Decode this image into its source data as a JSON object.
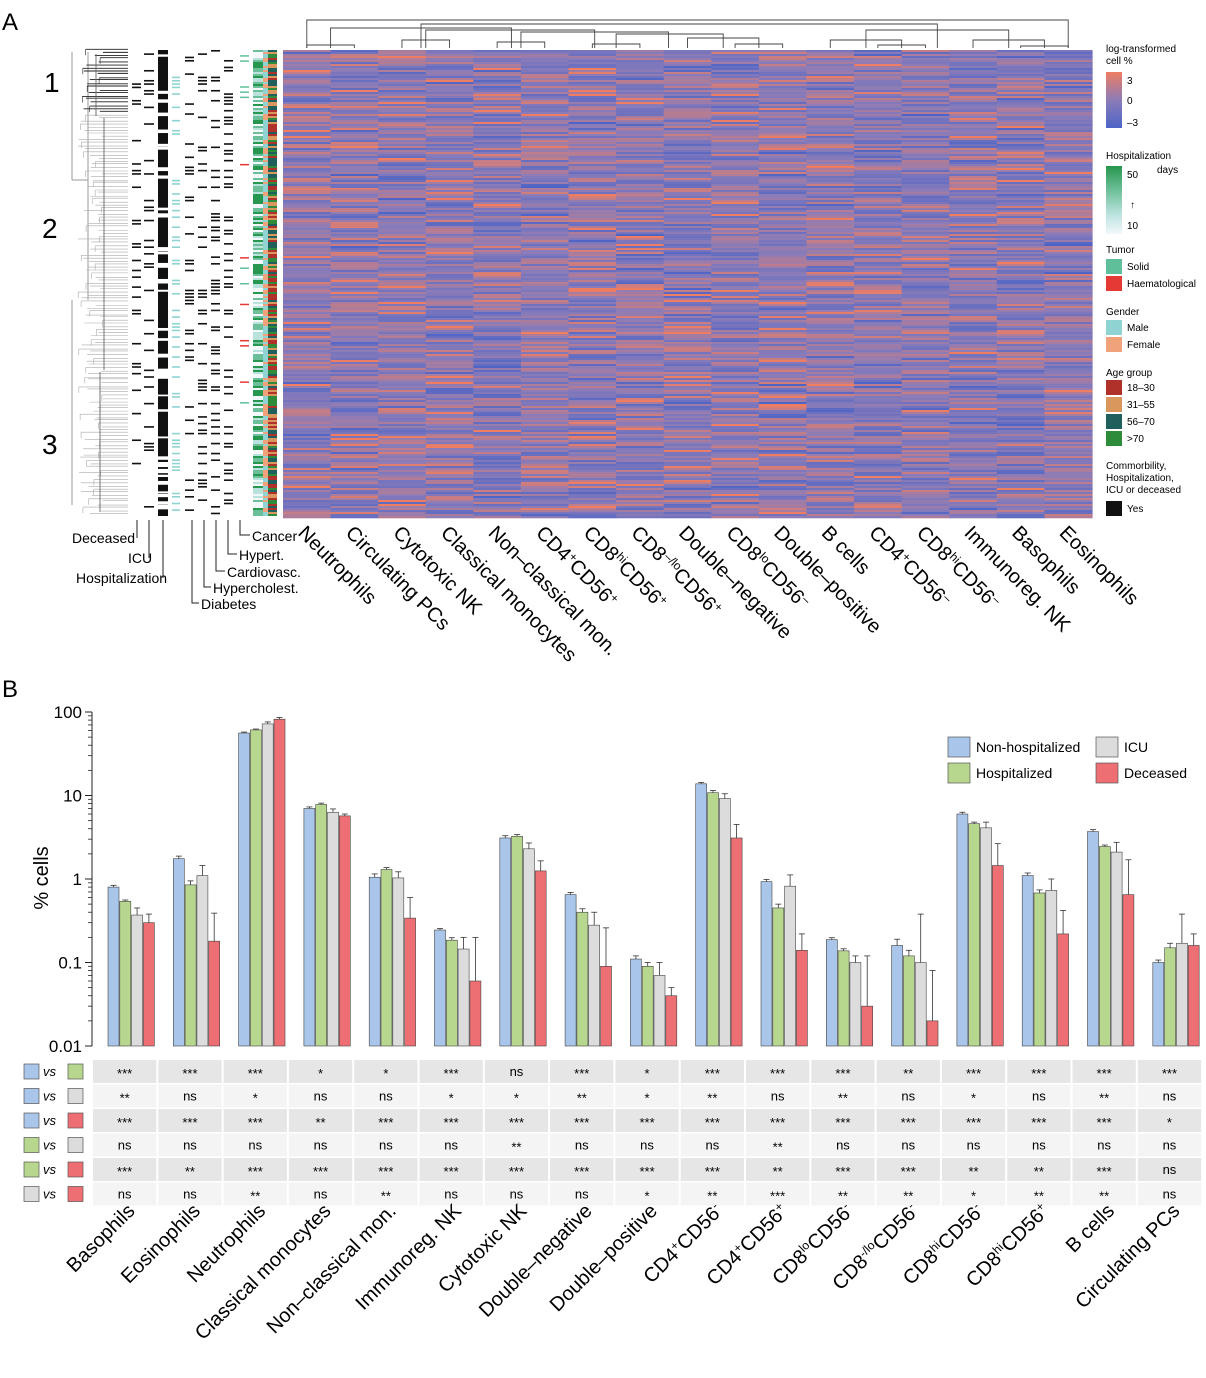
{
  "panel_a": {
    "panel_label": "A",
    "cluster_labels": [
      "1",
      "2",
      "3"
    ],
    "annotation_labels": [
      "Deceased",
      "ICU",
      "Hospitalization",
      "Diabetes",
      "Hyperchol­est.",
      "Cardiovasc.",
      "Hypert.",
      "Cancer"
    ],
    "column_labels": [
      {
        "parts": [
          [
            "Neutrophils",
            ""
          ]
        ]
      },
      {
        "parts": [
          [
            "Circulating PCs",
            ""
          ]
        ]
      },
      {
        "parts": [
          [
            "Cytotoxic NK",
            ""
          ]
        ]
      },
      {
        "parts": [
          [
            "Classical monocytes",
            ""
          ]
        ]
      },
      {
        "parts": [
          [
            "Non–classical mon.",
            ""
          ]
        ]
      },
      {
        "parts": [
          [
            "CD4",
            ""
          ],
          [
            "+",
            "sup"
          ],
          [
            "CD56",
            ""
          ],
          [
            "+",
            "sup"
          ]
        ]
      },
      {
        "parts": [
          [
            "CD8",
            ""
          ],
          [
            "hi",
            "sup"
          ],
          [
            "CD56",
            ""
          ],
          [
            "+",
            "sup"
          ]
        ]
      },
      {
        "parts": [
          [
            "CD8",
            ""
          ],
          [
            "–/lo",
            "sup"
          ],
          [
            "CD56",
            ""
          ],
          [
            "+",
            "sup"
          ]
        ]
      },
      {
        "parts": [
          [
            "Double–negative",
            ""
          ]
        ]
      },
      {
        "parts": [
          [
            "CD8",
            ""
          ],
          [
            "lo",
            "sup"
          ],
          [
            "CD56",
            ""
          ],
          [
            "–",
            "sup"
          ]
        ]
      },
      {
        "parts": [
          [
            "Double–positive",
            ""
          ]
        ]
      },
      {
        "parts": [
          [
            "B cells",
            ""
          ]
        ]
      },
      {
        "parts": [
          [
            "CD4",
            ""
          ],
          [
            "+",
            "sup"
          ],
          [
            "CD56",
            ""
          ],
          [
            "–",
            "sup"
          ]
        ]
      },
      {
        "parts": [
          [
            "CD8",
            ""
          ],
          [
            "hi",
            "sup"
          ],
          [
            "CD56",
            ""
          ],
          [
            "–",
            "sup"
          ]
        ]
      },
      {
        "parts": [
          [
            "Immunoreg. NK",
            ""
          ]
        ]
      },
      {
        "parts": [
          [
            "Basophils",
            ""
          ]
        ]
      },
      {
        "parts": [
          [
            "Eosinophils",
            ""
          ]
        ]
      }
    ],
    "legend": {
      "colorbar_title": [
        "log-transformed",
        "cell %"
      ],
      "colorbar_ticks": [
        "3",
        "0",
        "–3"
      ],
      "colorbar_colors": [
        "#ee7d62",
        "#8b7cb8",
        "#4d64c6"
      ],
      "hosp_title": [
        "Hospitalization",
        "days"
      ],
      "hosp_ticks": [
        "50",
        "10"
      ],
      "hosp_colors": [
        "#27964e",
        "#6cbf98",
        "#b9e2dd",
        "#f2f8fb"
      ],
      "tumor_title": "Tumor",
      "tumor_items": [
        {
          "label": "Solid",
          "color": "#5fbf9a"
        },
        {
          "label": "Haematological",
          "color": "#e53935"
        }
      ],
      "gender_title": "Gender",
      "gender_items": [
        {
          "label": "Male",
          "color": "#8fd3d3"
        },
        {
          "label": "Female",
          "color": "#f0a27a"
        }
      ],
      "age_title": "Age group",
      "age_items": [
        {
          "label": "18–30",
          "color": "#b0302a"
        },
        {
          "label": "31–55",
          "color": "#d9975e"
        },
        {
          "label": "56–70",
          "color": "#1f5f5c"
        },
        {
          "label": ">70",
          "color": "#2e8b3a"
        }
      ],
      "binary_title": [
        "Commorbility,",
        "Hospitalization,",
        "ICU or deceased"
      ],
      "binary_items": [
        {
          "label": "Yes",
          "color": "#111111"
        }
      ]
    }
  },
  "chart_data": {
    "type": "bar",
    "panel_label": "B",
    "title": "",
    "xlabel": "",
    "ylabel": "% cells",
    "yscale": "log",
    "ylim": [
      0.01,
      100
    ],
    "yticks": [
      0.01,
      0.1,
      1,
      10,
      100
    ],
    "ytick_labels": [
      "0.01",
      "0.1",
      "1",
      "10",
      "100"
    ],
    "categories": [
      {
        "parts": [
          [
            "Basophils",
            ""
          ]
        ]
      },
      {
        "parts": [
          [
            "Eosinophils",
            ""
          ]
        ]
      },
      {
        "parts": [
          [
            "Neutrophils",
            ""
          ]
        ]
      },
      {
        "parts": [
          [
            "Classical monocytes",
            ""
          ]
        ]
      },
      {
        "parts": [
          [
            "Non–classical mon.",
            ""
          ]
        ]
      },
      {
        "parts": [
          [
            "Immunoreg. NK",
            ""
          ]
        ]
      },
      {
        "parts": [
          [
            "Cytotoxic NK",
            ""
          ]
        ]
      },
      {
        "parts": [
          [
            "Double–negative",
            ""
          ]
        ]
      },
      {
        "parts": [
          [
            "Double–positive",
            ""
          ]
        ]
      },
      {
        "parts": [
          [
            "CD4",
            ""
          ],
          [
            "+",
            "sup"
          ],
          [
            "CD56",
            ""
          ],
          [
            "-",
            "sup"
          ]
        ]
      },
      {
        "parts": [
          [
            "CD4",
            ""
          ],
          [
            "+",
            "sup"
          ],
          [
            "CD56",
            ""
          ],
          [
            "+",
            "sup"
          ]
        ]
      },
      {
        "parts": [
          [
            "CD8",
            ""
          ],
          [
            "lo",
            "sup"
          ],
          [
            "CD56",
            ""
          ],
          [
            "-",
            "sup"
          ]
        ]
      },
      {
        "parts": [
          [
            "CD8",
            ""
          ],
          [
            "-/lo",
            "sup"
          ],
          [
            "CD56",
            ""
          ],
          [
            "-",
            "sup"
          ]
        ]
      },
      {
        "parts": [
          [
            "CD8",
            ""
          ],
          [
            "hi",
            "sup"
          ],
          [
            "CD56",
            ""
          ],
          [
            "-",
            "sup"
          ]
        ]
      },
      {
        "parts": [
          [
            "CD8",
            ""
          ],
          [
            "hi",
            "sup"
          ],
          [
            "CD56",
            ""
          ],
          [
            "+",
            "sup"
          ]
        ]
      },
      {
        "parts": [
          [
            "B cells",
            ""
          ]
        ]
      },
      {
        "parts": [
          [
            "Circulating PCs",
            ""
          ]
        ]
      }
    ],
    "series": [
      {
        "name": "Non-hospitalized",
        "color": "#a9c6ea",
        "values": [
          0.8,
          1.75,
          56,
          7.0,
          1.05,
          0.245,
          3.1,
          0.65,
          0.11,
          13.8,
          0.93,
          0.188,
          0.16,
          6.0,
          1.1,
          3.7,
          0.1
        ],
        "errors": [
          0.84,
          1.88,
          57.5,
          7.3,
          1.15,
          0.255,
          3.3,
          0.69,
          0.12,
          14.3,
          0.99,
          0.198,
          0.19,
          6.3,
          1.18,
          3.9,
          0.107
        ]
      },
      {
        "name": "Hospitalized",
        "color": "#b7d78f",
        "values": [
          0.54,
          0.85,
          61,
          7.8,
          1.3,
          0.185,
          3.25,
          0.4,
          0.09,
          10.8,
          0.45,
          0.138,
          0.12,
          4.6,
          0.68,
          2.45,
          0.15
        ],
        "errors": [
          0.56,
          0.95,
          62.5,
          8.1,
          1.37,
          0.198,
          3.4,
          0.44,
          0.1,
          11.5,
          0.5,
          0.146,
          0.14,
          4.8,
          0.74,
          2.55,
          0.17
        ]
      },
      {
        "name": "ICU",
        "color": "#dcdcdc",
        "values": [
          0.37,
          1.1,
          72,
          6.3,
          1.03,
          0.145,
          2.3,
          0.28,
          0.07,
          9.2,
          0.82,
          0.1,
          0.1,
          4.1,
          0.73,
          2.1,
          0.17
        ],
        "errors": [
          0.45,
          1.45,
          76,
          6.9,
          1.22,
          0.2,
          2.7,
          0.4,
          0.1,
          10.5,
          1.12,
          0.12,
          0.38,
          4.8,
          1.0,
          2.75,
          0.38
        ]
      },
      {
        "name": "Deceased",
        "color": "#ee6f73",
        "values": [
          0.3,
          0.18,
          82,
          5.7,
          0.34,
          0.06,
          1.25,
          0.09,
          0.04,
          3.1,
          0.14,
          0.03,
          0.02,
          1.45,
          0.22,
          0.65,
          0.16
        ],
        "errors": [
          0.38,
          0.39,
          86,
          6.0,
          0.6,
          0.2,
          1.65,
          0.26,
          0.05,
          4.5,
          0.22,
          0.12,
          0.08,
          2.65,
          0.42,
          1.7,
          0.22
        ]
      }
    ],
    "legend_position": "top-right",
    "comparisons": [
      {
        "left_color": "#a9c6ea",
        "vs": "vs",
        "right_color": "#b7d78f",
        "values": [
          "***",
          "***",
          "***",
          "*",
          "*",
          "***",
          "ns",
          "***",
          "*",
          "***",
          "***",
          "***",
          "**",
          "***",
          "***",
          "***",
          "***"
        ]
      },
      {
        "left_color": "#a9c6ea",
        "vs": "vs",
        "right_color": "#dcdcdc",
        "values": [
          "**",
          "ns",
          "*",
          "ns",
          "ns",
          "*",
          "*",
          "**",
          "*",
          "**",
          "ns",
          "**",
          "ns",
          "*",
          "ns",
          "**",
          "ns"
        ]
      },
      {
        "left_color": "#a9c6ea",
        "vs": "vs",
        "right_color": "#ee6f73",
        "values": [
          "***",
          "***",
          "***",
          "**",
          "***",
          "***",
          "***",
          "***",
          "***",
          "***",
          "***",
          "***",
          "***",
          "***",
          "***",
          "***",
          "*"
        ]
      },
      {
        "left_color": "#b7d78f",
        "vs": "vs",
        "right_color": "#dcdcdc",
        "values": [
          "ns",
          "ns",
          "ns",
          "ns",
          "ns",
          "ns",
          "**",
          "ns",
          "ns",
          "ns",
          "**",
          "ns",
          "ns",
          "ns",
          "ns",
          "ns",
          "ns"
        ]
      },
      {
        "left_color": "#b7d78f",
        "vs": "vs",
        "right_color": "#ee6f73",
        "values": [
          "***",
          "**",
          "***",
          "***",
          "***",
          "***",
          "***",
          "***",
          "***",
          "***",
          "**",
          "***",
          "***",
          "**",
          "**",
          "***",
          "ns"
        ]
      },
      {
        "left_color": "#dcdcdc",
        "vs": "vs",
        "right_color": "#ee6f73",
        "values": [
          "ns",
          "ns",
          "**",
          "ns",
          "**",
          "ns",
          "ns",
          "ns",
          "*",
          "**",
          "***",
          "**",
          "**",
          "*",
          "**",
          "**",
          "ns"
        ]
      }
    ]
  }
}
